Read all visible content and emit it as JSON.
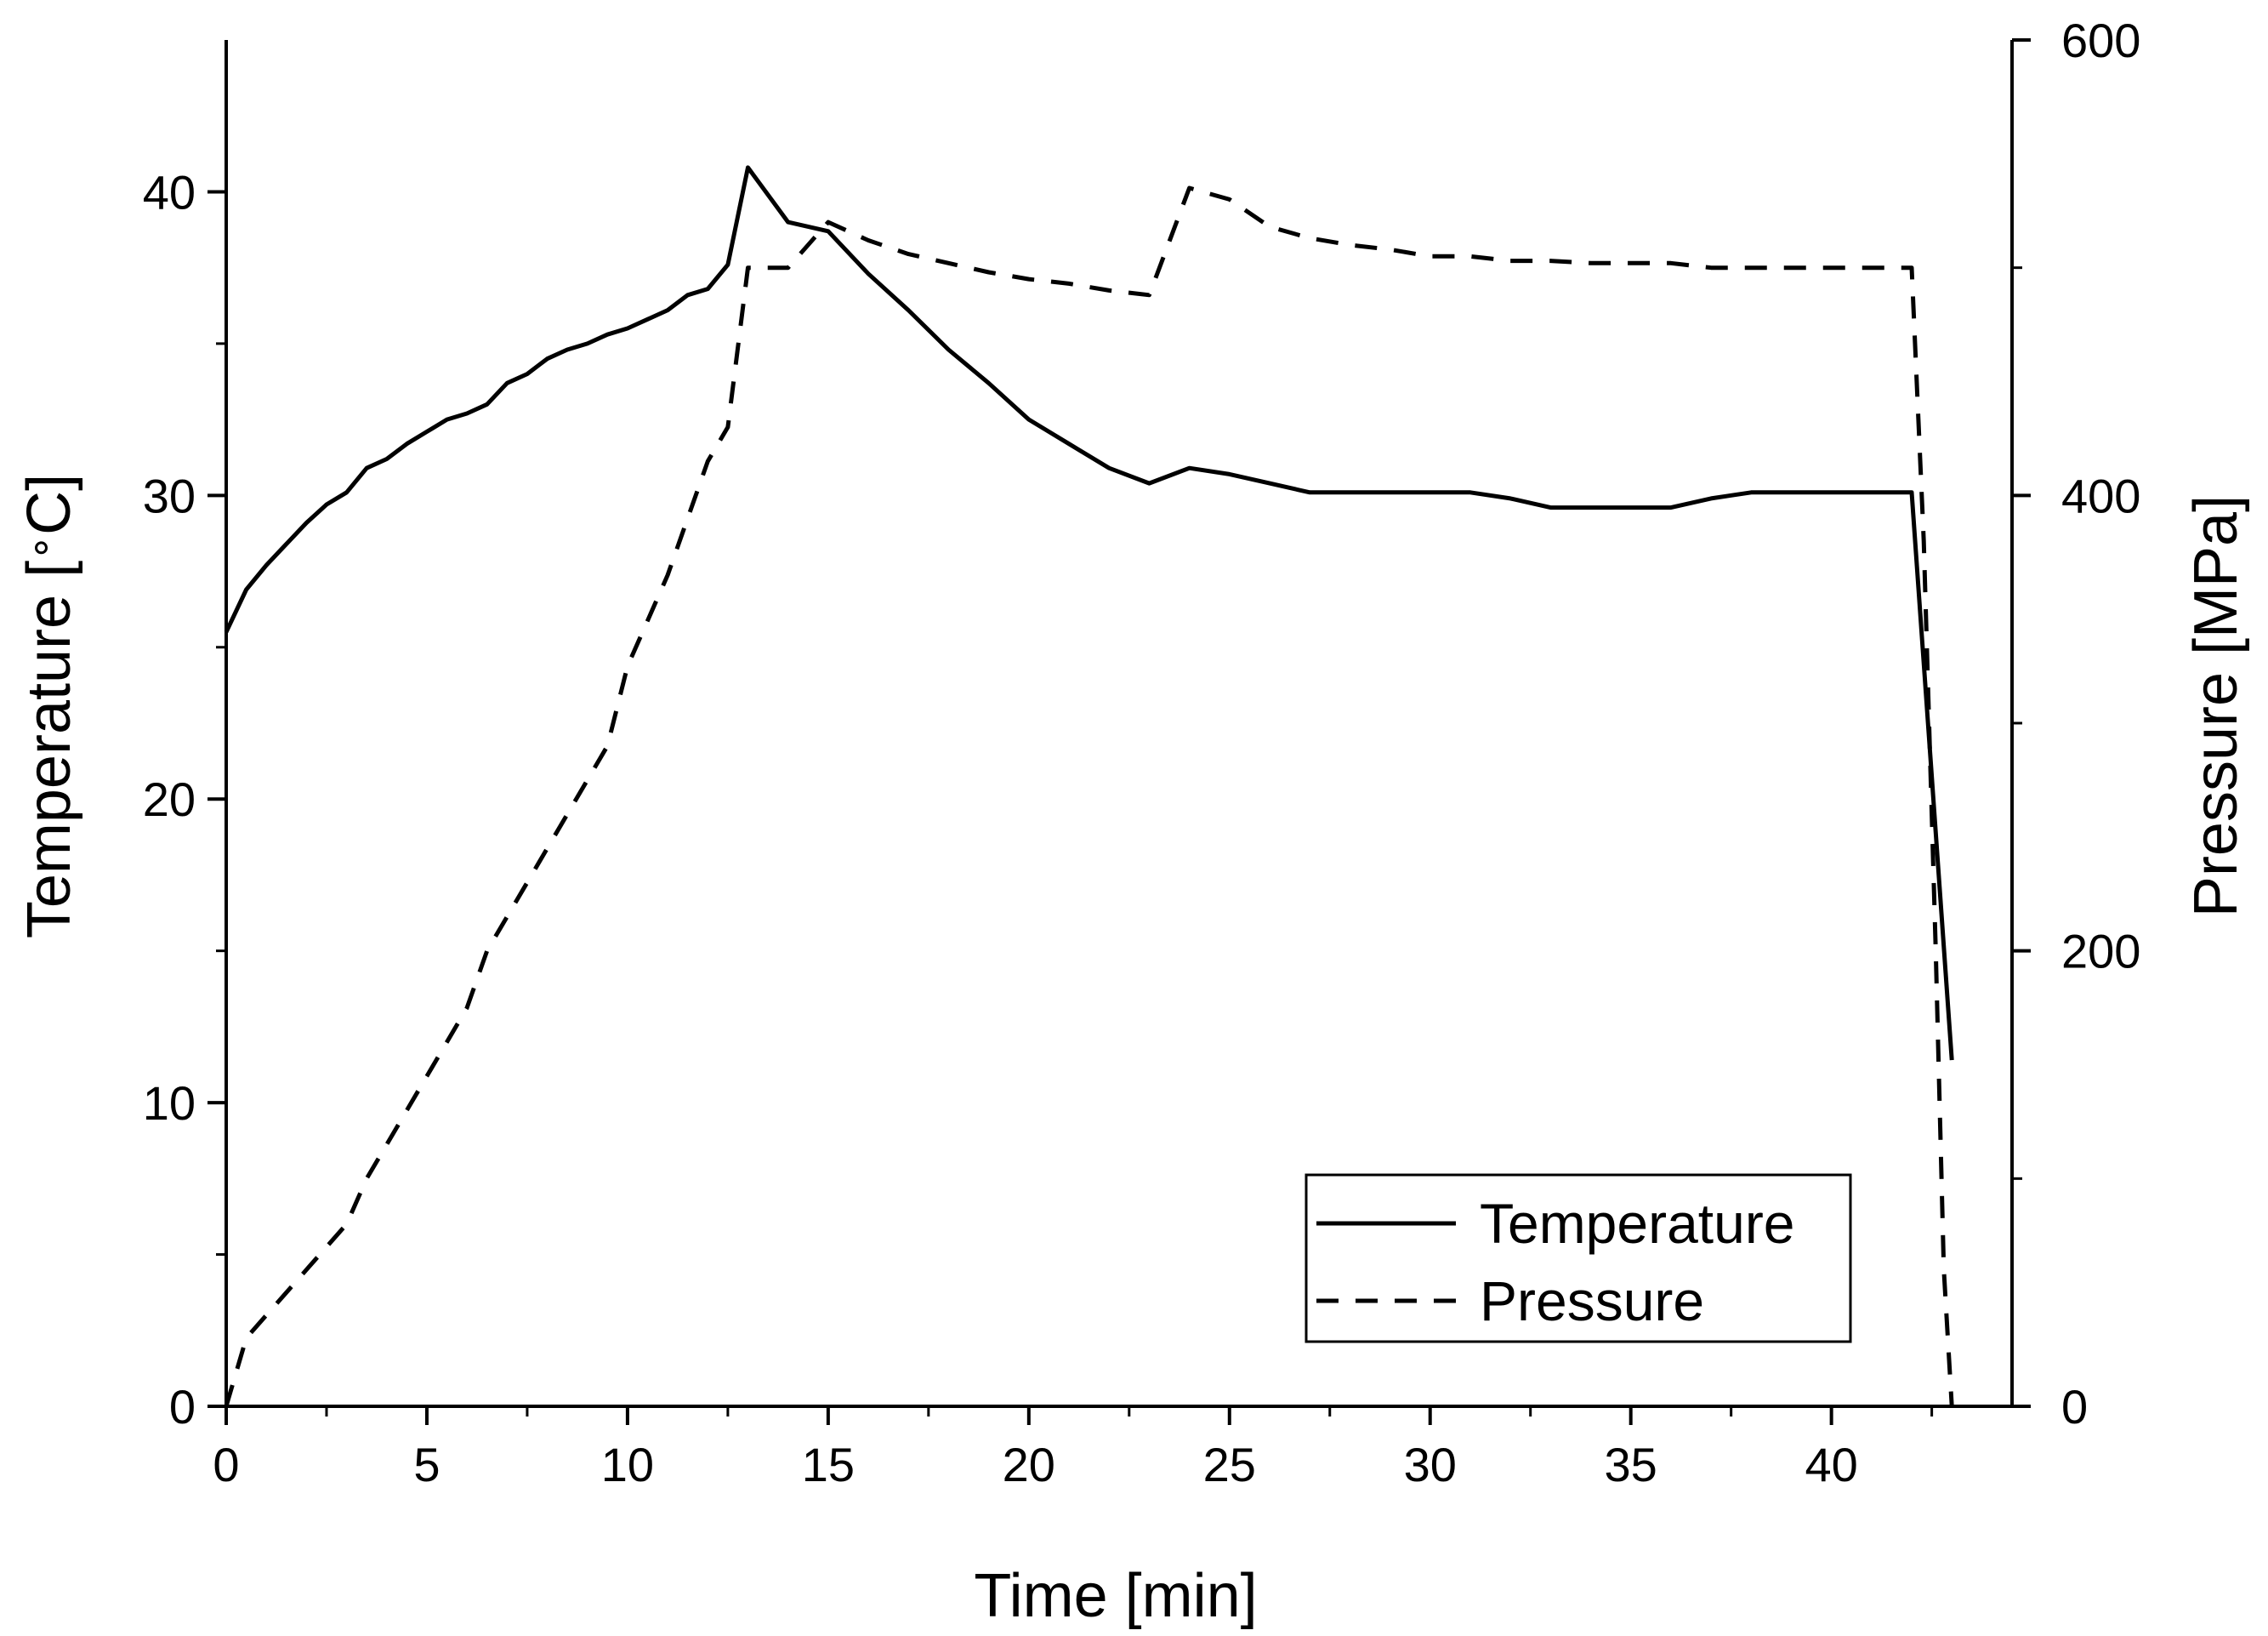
{
  "chart_data": {
    "type": "line",
    "title": "",
    "xlabel": "Time [min]",
    "ylabel_left": "Temperature [°C]",
    "ylabel_left_parts": [
      "Temperature [",
      "∘",
      "C]"
    ],
    "ylabel_right": "Pressure [MPa]",
    "xlim": [
      0,
      44.5
    ],
    "ylim_left": [
      0,
      45
    ],
    "ylim_right": [
      0,
      600
    ],
    "x_ticks": [
      0,
      5,
      10,
      15,
      20,
      25,
      30,
      35,
      40
    ],
    "x_tick_labels": [
      "0",
      "5",
      "10",
      "15",
      "20",
      "25",
      "30",
      "35",
      "40"
    ],
    "y_left_ticks": [
      0,
      10,
      20,
      30,
      40
    ],
    "y_left_tick_labels": [
      "0",
      "10",
      "20",
      "30",
      "40"
    ],
    "y_right_ticks": [
      0,
      200,
      400,
      600
    ],
    "y_right_tick_labels": [
      "0",
      "200",
      "400",
      "600"
    ],
    "grid": false,
    "legend_position": "bottom-right",
    "series": [
      {
        "name": "Temperature",
        "axis": "left",
        "style": "solid",
        "color": "#000000",
        "x": [
          0,
          0.5,
          1,
          1.5,
          2,
          2.5,
          3,
          3.5,
          4,
          4.5,
          5,
          5.5,
          6,
          6.5,
          7,
          7.5,
          8,
          8.5,
          9,
          9.5,
          10,
          10.5,
          11,
          11.5,
          12,
          12.5,
          13,
          14,
          15,
          16,
          17,
          18,
          19,
          20,
          21,
          22,
          23,
          24,
          25,
          26,
          27,
          28,
          29,
          30,
          31,
          32,
          33,
          34,
          35,
          36,
          37,
          38,
          39,
          40,
          41,
          42,
          43
        ],
        "y": [
          25.5,
          26.9,
          27.7,
          28.4,
          29.1,
          29.7,
          30.1,
          30.9,
          31.2,
          31.7,
          32.1,
          32.5,
          32.7,
          33.0,
          33.7,
          34.0,
          34.5,
          34.8,
          35.0,
          35.3,
          35.5,
          35.8,
          36.1,
          36.6,
          36.8,
          37.6,
          40.8,
          39.0,
          38.7,
          37.3,
          36.1,
          34.8,
          33.7,
          32.5,
          31.7,
          30.9,
          30.4,
          30.9,
          30.7,
          30.4,
          30.1,
          30.1,
          30.1,
          30.1,
          30.1,
          29.9,
          29.6,
          29.6,
          29.6,
          29.6,
          29.9,
          30.1,
          30.1,
          30.1,
          30.1,
          30.1,
          11.4
        ]
      },
      {
        "name": "Pressure",
        "axis": "right",
        "style": "dashed",
        "color": "#000000",
        "x": [
          0,
          0.5,
          1,
          1.5,
          2,
          2.5,
          3,
          3.5,
          4,
          4.5,
          5,
          5.5,
          6,
          6.5,
          7,
          7.5,
          8,
          8.5,
          9,
          9.5,
          10,
          10.5,
          11,
          11.5,
          12,
          12.5,
          13,
          14,
          15,
          16,
          17,
          18,
          19,
          20,
          21,
          22,
          23,
          24,
          25,
          26,
          27,
          28,
          29,
          30,
          31,
          32,
          33,
          34,
          35,
          36,
          37,
          38,
          39,
          40,
          41,
          42,
          42.3,
          42.6,
          42.8,
          43
        ],
        "y": [
          0,
          30,
          40,
          50,
          60,
          70,
          80,
          100,
          115,
          130,
          145,
          160,
          175,
          200,
          215,
          230,
          245,
          260,
          275,
          290,
          325,
          345,
          365,
          390,
          415,
          430,
          500,
          500,
          520,
          512,
          506,
          502,
          498,
          495,
          493,
          490,
          488,
          535,
          530,
          518,
          513,
          510,
          508,
          505,
          505,
          503,
          503,
          502,
          502,
          502,
          500,
          500,
          500,
          500,
          500,
          500,
          380,
          200,
          60,
          0
        ]
      }
    ]
  }
}
